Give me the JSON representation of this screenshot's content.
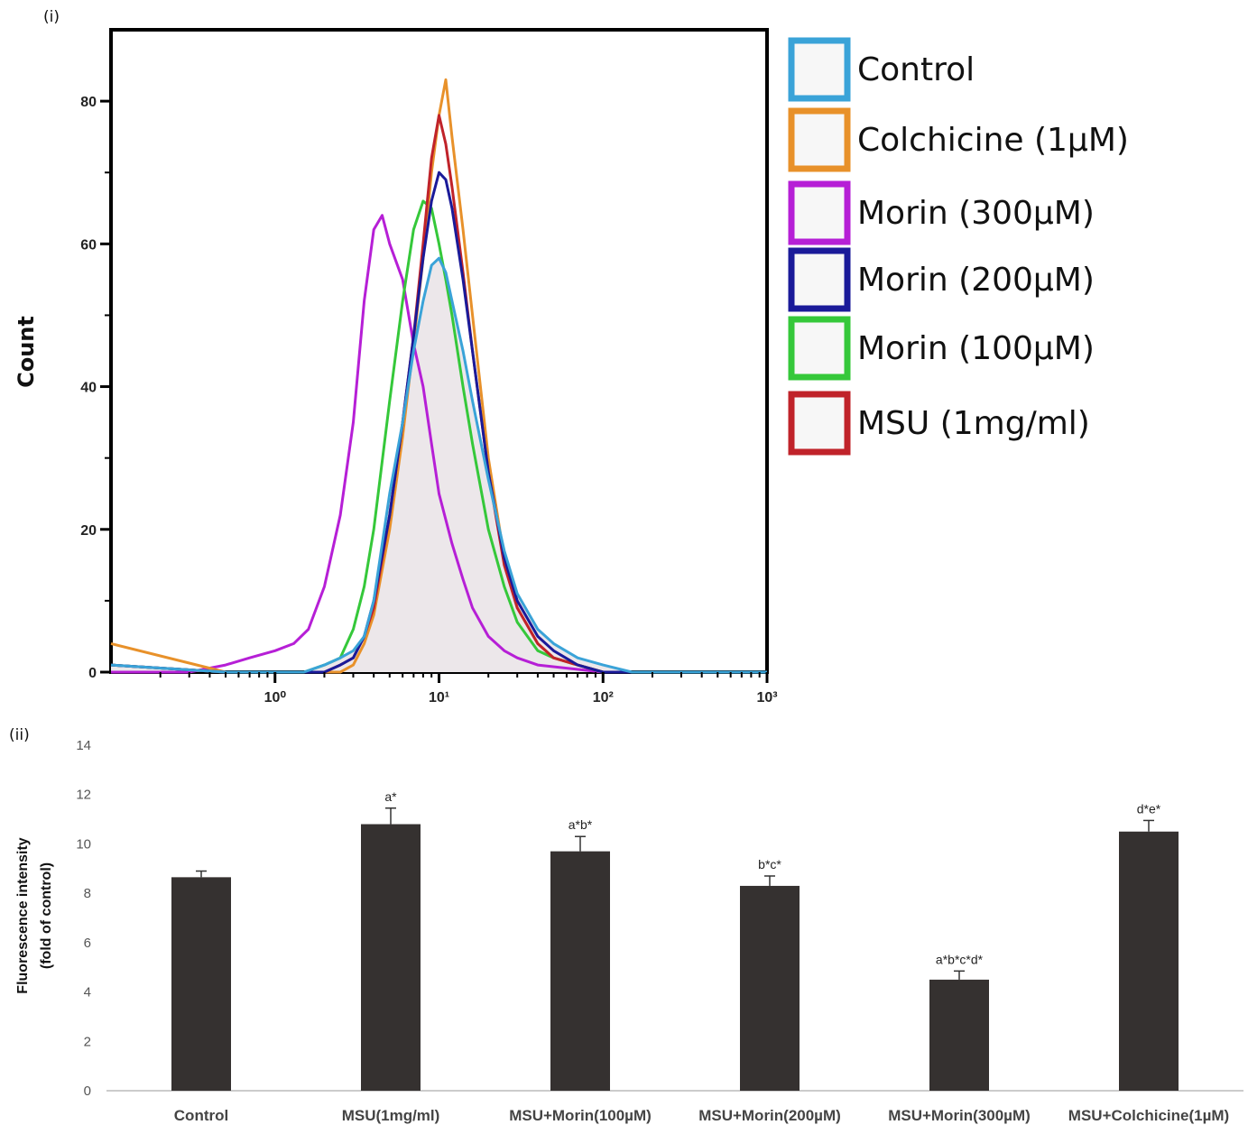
{
  "panels": {
    "top_label": "(i)",
    "bottom_label": "(ii)"
  },
  "chart_data": [
    {
      "type": "line",
      "subtype": "histogram-overlay",
      "xlabel": "",
      "ylabel": "Count",
      "x_scale": "log",
      "xlim": [
        0.1,
        1000
      ],
      "ylim": [
        0,
        90
      ],
      "x_ticks": [
        {
          "value": 1,
          "label": "10⁰"
        },
        {
          "value": 10,
          "label": "10¹"
        },
        {
          "value": 100,
          "label": "10²"
        },
        {
          "value": 1000,
          "label": "10³"
        }
      ],
      "y_ticks": [
        0,
        20,
        40,
        60,
        80
      ],
      "legend_position": "right",
      "series": [
        {
          "name": "Control",
          "color": "#3aa3d8",
          "filled": true,
          "x": [
            0.1,
            0.5,
            1,
            1.5,
            2,
            2.5,
            3,
            3.5,
            4,
            5,
            6,
            7,
            8,
            9,
            10,
            11,
            12,
            14,
            16,
            20,
            25,
            30,
            40,
            50,
            70,
            100,
            150,
            1000
          ],
          "y": [
            1,
            0,
            0,
            0,
            1,
            2,
            3,
            5,
            10,
            25,
            35,
            45,
            52,
            57,
            58,
            56,
            52,
            45,
            38,
            27,
            17,
            11,
            6,
            4,
            2,
            1,
            0,
            0
          ]
        },
        {
          "name": "Colchicine (1µM)",
          "color": "#e8912a",
          "filled": false,
          "x": [
            0.1,
            0.5,
            1,
            1.5,
            2,
            2.5,
            3,
            3.5,
            4,
            5,
            6,
            7,
            8,
            9,
            10,
            11,
            12,
            14,
            16,
            20,
            25,
            30,
            40,
            50,
            70,
            100,
            150,
            1000
          ],
          "y": [
            4,
            0,
            0,
            0,
            0,
            0,
            1,
            4,
            8,
            20,
            33,
            46,
            58,
            70,
            78,
            83,
            75,
            62,
            50,
            30,
            16,
            9,
            4,
            2,
            1,
            0,
            0,
            0
          ]
        },
        {
          "name": "Morin (300µM)",
          "color": "#b61fd6",
          "filled": false,
          "x": [
            0.1,
            0.3,
            0.5,
            0.7,
            1,
            1.3,
            1.6,
            2,
            2.5,
            3,
            3.5,
            4,
            4.5,
            5,
            6,
            7,
            8,
            9,
            10,
            12,
            14,
            16,
            20,
            25,
            30,
            40,
            100,
            1000
          ],
          "y": [
            0,
            0,
            1,
            2,
            3,
            4,
            6,
            12,
            22,
            35,
            52,
            62,
            64,
            60,
            55,
            46,
            40,
            32,
            25,
            18,
            13,
            9,
            5,
            3,
            2,
            1,
            0,
            0
          ]
        },
        {
          "name": "Morin (200µM)",
          "color": "#1a1a99",
          "filled": false,
          "x": [
            0.1,
            0.5,
            1,
            1.5,
            2,
            2.5,
            3,
            3.5,
            4,
            5,
            6,
            7,
            8,
            9,
            10,
            11,
            12,
            14,
            16,
            20,
            25,
            30,
            40,
            50,
            70,
            100,
            150,
            1000
          ],
          "y": [
            1,
            0,
            0,
            0,
            0,
            1,
            2,
            5,
            10,
            22,
            35,
            47,
            58,
            66,
            70,
            69,
            65,
            55,
            45,
            28,
            16,
            10,
            5,
            3,
            1,
            0,
            0,
            0
          ]
        },
        {
          "name": "Morin (100µM)",
          "color": "#35c83a",
          "filled": false,
          "x": [
            0.1,
            0.5,
            1,
            1.5,
            2,
            2.5,
            3,
            3.5,
            4,
            5,
            6,
            7,
            8,
            9,
            10,
            11,
            12,
            14,
            16,
            20,
            25,
            30,
            40,
            50,
            70,
            100,
            150,
            1000
          ],
          "y": [
            1,
            0,
            0,
            0,
            1,
            2,
            6,
            12,
            20,
            38,
            52,
            62,
            66,
            65,
            60,
            55,
            50,
            40,
            32,
            20,
            12,
            7,
            3,
            2,
            1,
            0,
            0,
            0
          ]
        },
        {
          "name": "MSU (1mg/ml)",
          "color": "#c0232a",
          "filled": false,
          "x": [
            0.1,
            0.5,
            1,
            1.5,
            2,
            2.5,
            3,
            3.5,
            4,
            5,
            6,
            7,
            8,
            9,
            10,
            11,
            12,
            14,
            16,
            20,
            25,
            30,
            40,
            50,
            70,
            100,
            150,
            1000
          ],
          "y": [
            1,
            0,
            0,
            0,
            0,
            1,
            2,
            5,
            9,
            22,
            35,
            47,
            60,
            72,
            78,
            74,
            68,
            56,
            45,
            28,
            15,
            9,
            4,
            2,
            1,
            0,
            0,
            0
          ]
        }
      ]
    },
    {
      "type": "bar",
      "xlabel": "",
      "ylabel_lines": [
        "Fluorescence intensity",
        "(fold of control)"
      ],
      "ylim": [
        0,
        14
      ],
      "y_ticks": [
        0,
        2,
        4,
        6,
        8,
        10,
        12,
        14
      ],
      "bar_color": "#353130",
      "categories": [
        "Control",
        "MSU(1mg/ml)",
        "MSU+Morin(100µM)",
        "MSU+Morin(200µM)",
        "MSU+Morin(300µM)",
        "MSU+Colchicine(1µM)"
      ],
      "values": [
        8.65,
        10.8,
        9.7,
        8.3,
        4.5,
        10.5
      ],
      "errors": [
        0.25,
        0.65,
        0.6,
        0.4,
        0.35,
        0.45
      ],
      "annotations": [
        "",
        "a*",
        "a*b*",
        "b*c*",
        "a*b*c*d*",
        "d*e*"
      ]
    }
  ]
}
